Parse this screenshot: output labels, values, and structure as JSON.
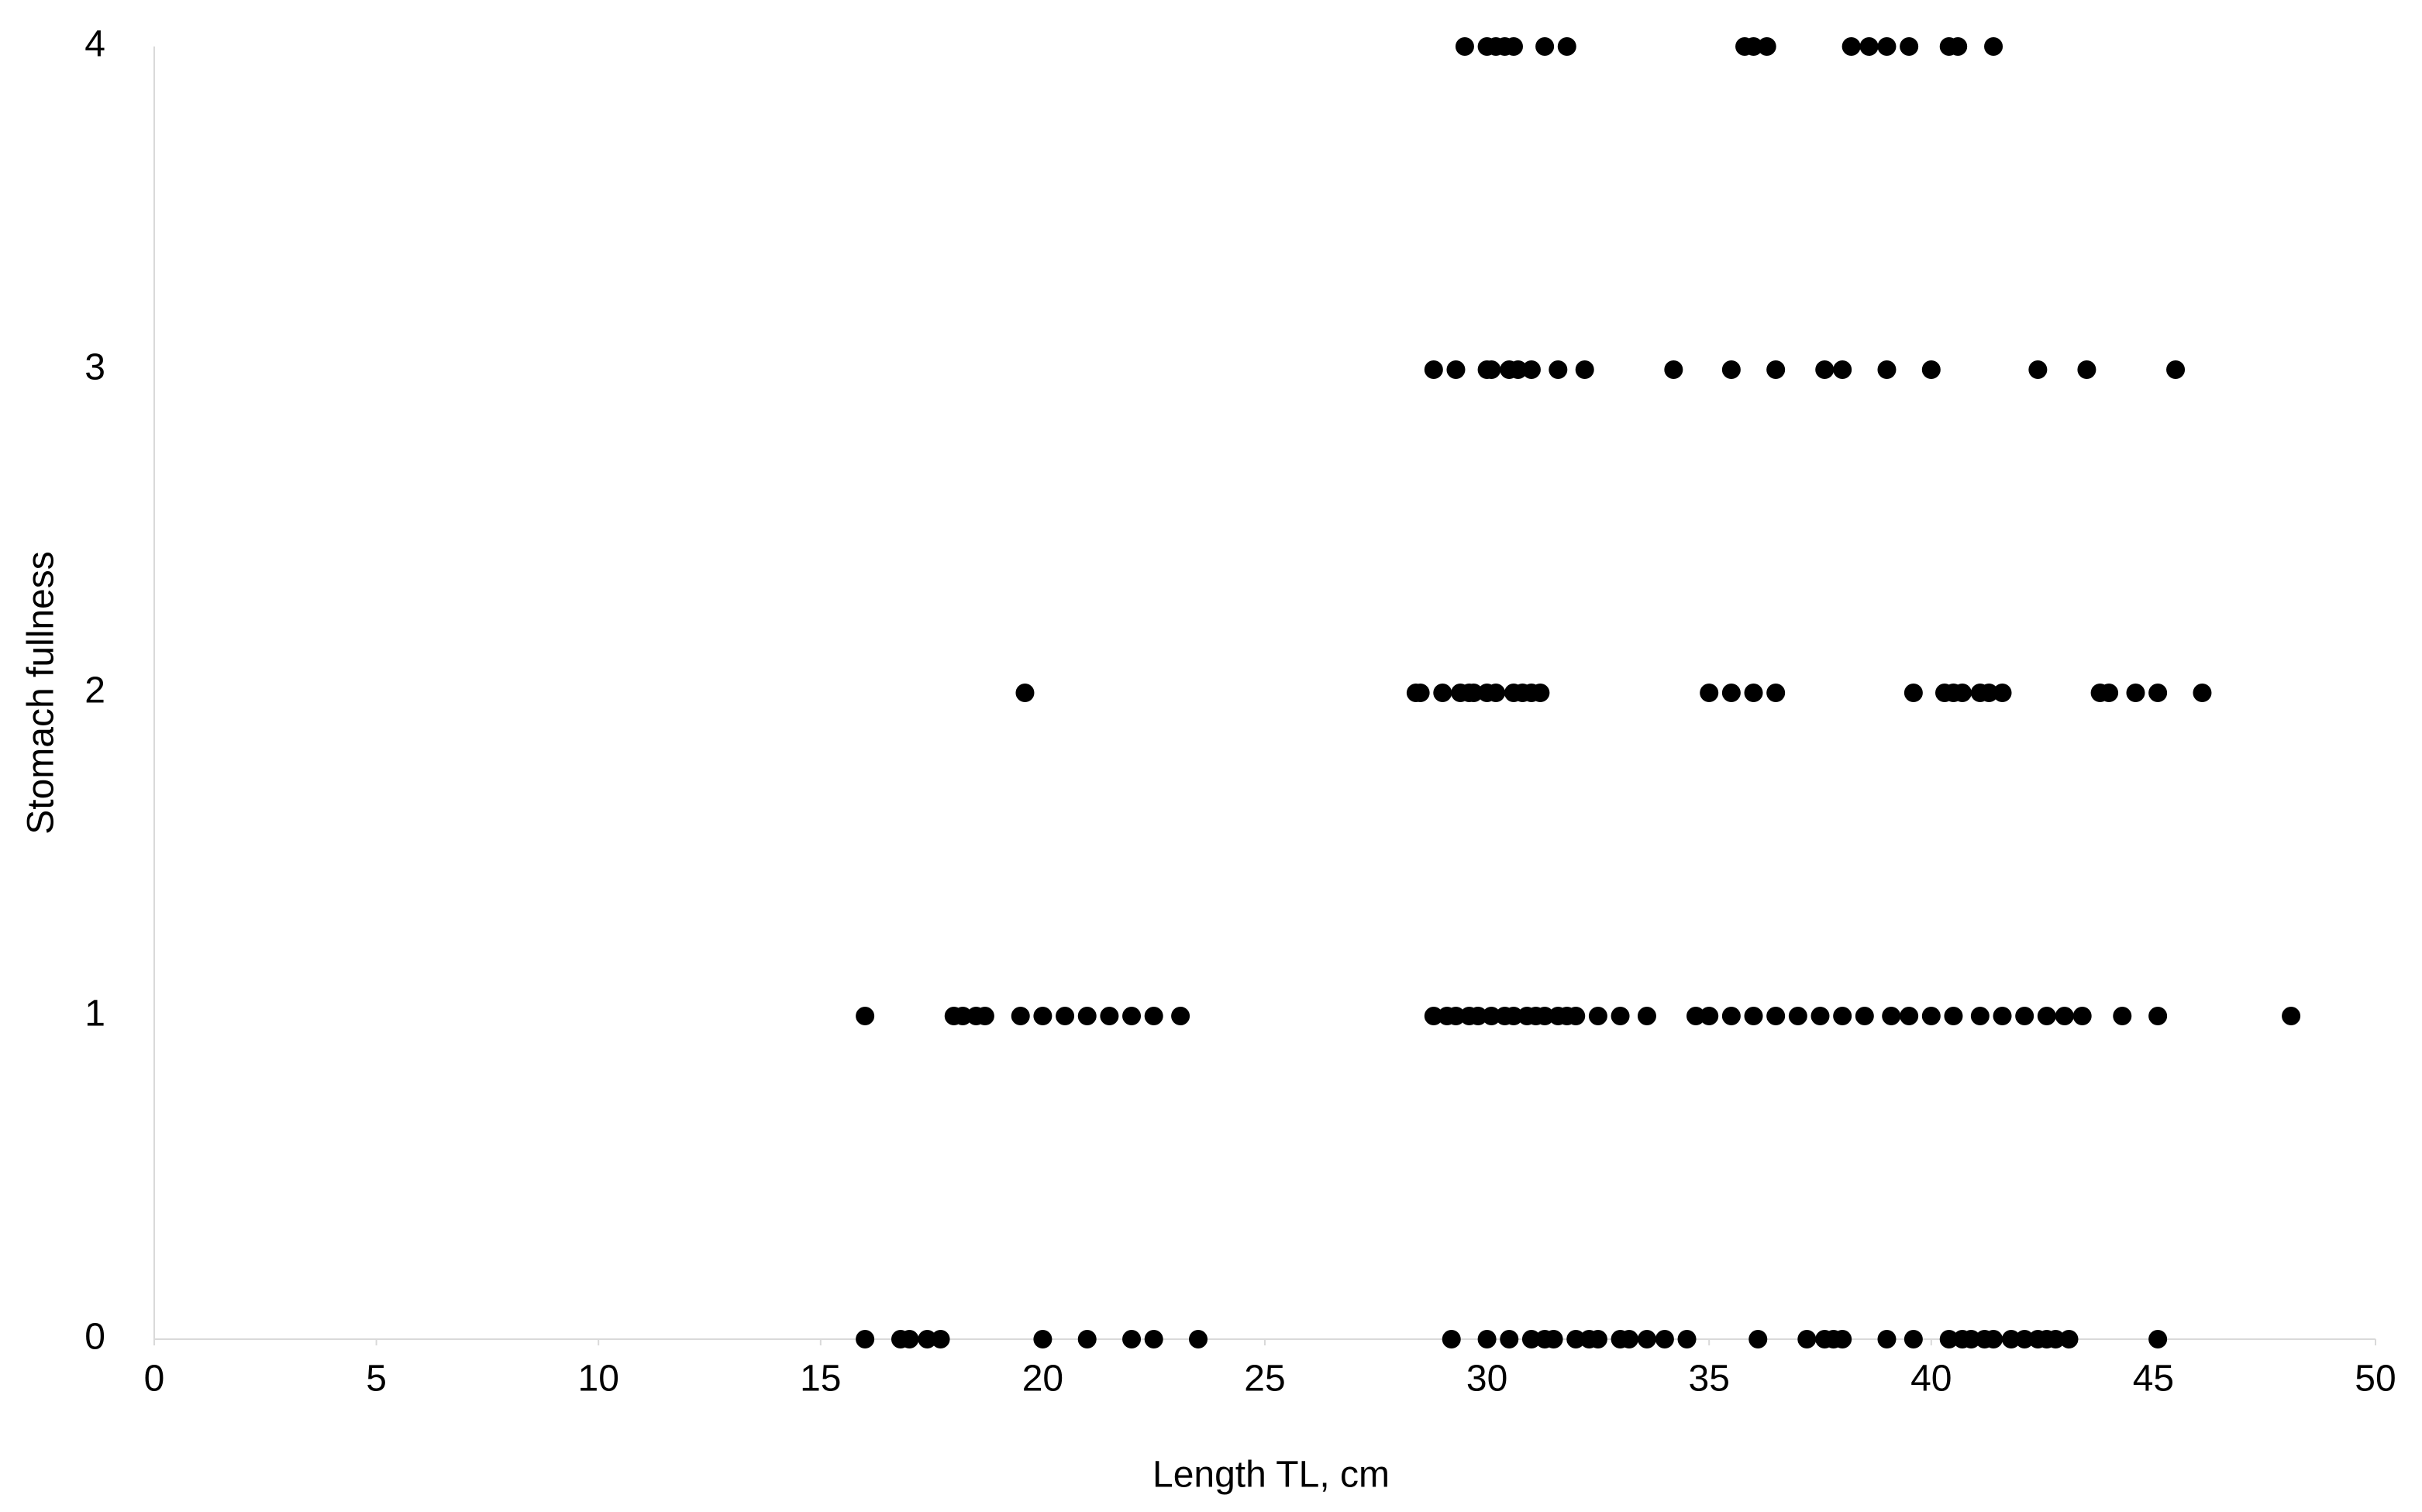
{
  "chart_data": {
    "type": "scatter",
    "xlabel": "Length TL, cm",
    "ylabel": "Stomach fullness",
    "color": "#000000",
    "xlim": [
      0,
      50
    ],
    "xticks": [
      0,
      5,
      10,
      15,
      20,
      25,
      30,
      35,
      40,
      45,
      50
    ],
    "ylim": [
      0,
      4
    ],
    "yticks": [
      0,
      1,
      2,
      3,
      4
    ],
    "grid": false,
    "x": [
      29.5,
      30.0,
      30.2,
      30.4,
      30.6,
      31.3,
      31.8,
      35.8,
      36.0,
      36.3,
      38.2,
      38.6,
      39.0,
      39.5,
      40.4,
      40.6,
      41.4,
      28.8,
      29.3,
      30.0,
      30.1,
      30.5,
      30.7,
      31.0,
      31.6,
      32.2,
      34.2,
      35.5,
      36.5,
      37.6,
      38.0,
      39.0,
      40.0,
      42.4,
      43.5,
      45.5,
      19.6,
      28.4,
      28.5,
      29.0,
      29.4,
      29.6,
      29.7,
      30.0,
      30.2,
      30.6,
      30.8,
      31.0,
      31.2,
      35.0,
      35.5,
      36.0,
      36.5,
      39.6,
      40.3,
      40.5,
      40.7,
      41.1,
      41.3,
      41.6,
      43.8,
      44.0,
      44.6,
      45.1,
      46.1,
      16.0,
      18.0,
      18.2,
      18.5,
      18.7,
      19.5,
      20.0,
      20.5,
      21.0,
      21.5,
      22.0,
      22.5,
      23.1,
      28.8,
      29.1,
      29.3,
      29.6,
      29.8,
      30.1,
      30.4,
      30.6,
      30.9,
      31.1,
      31.3,
      31.6,
      31.8,
      32.0,
      32.5,
      33.0,
      33.6,
      34.7,
      35.0,
      35.5,
      36.0,
      36.5,
      37.0,
      37.5,
      38.0,
      38.5,
      39.1,
      39.5,
      40.0,
      40.5,
      41.1,
      41.6,
      42.1,
      42.6,
      43.0,
      43.4,
      44.3,
      45.1,
      48.1,
      16.0,
      16.8,
      17.0,
      17.4,
      17.7,
      20.0,
      21.0,
      22.0,
      22.5,
      23.5,
      29.2,
      30.0,
      30.5,
      31.0,
      31.3,
      31.5,
      32.0,
      32.3,
      32.5,
      33.0,
      33.2,
      33.6,
      34.0,
      34.5,
      36.1,
      37.2,
      37.6,
      37.8,
      38.0,
      39.0,
      39.6,
      40.4,
      40.7,
      40.9,
      41.2,
      41.4,
      41.8,
      42.1,
      42.4,
      42.6,
      42.8,
      43.1,
      45.1
    ],
    "y": [
      4,
      4,
      4,
      4,
      4,
      4,
      4,
      4,
      4,
      4,
      4,
      4,
      4,
      4,
      4,
      4,
      4,
      3,
      3,
      3,
      3,
      3,
      3,
      3,
      3,
      3,
      3,
      3,
      3,
      3,
      3,
      3,
      3,
      3,
      3,
      3,
      2,
      2,
      2,
      2,
      2,
      2,
      2,
      2,
      2,
      2,
      2,
      2,
      2,
      2,
      2,
      2,
      2,
      2,
      2,
      2,
      2,
      2,
      2,
      2,
      2,
      2,
      2,
      2,
      2,
      1,
      1,
      1,
      1,
      1,
      1,
      1,
      1,
      1,
      1,
      1,
      1,
      1,
      1,
      1,
      1,
      1,
      1,
      1,
      1,
      1,
      1,
      1,
      1,
      1,
      1,
      1,
      1,
      1,
      1,
      1,
      1,
      1,
      1,
      1,
      1,
      1,
      1,
      1,
      1,
      1,
      1,
      1,
      1,
      1,
      1,
      1,
      1,
      1,
      1,
      1,
      1,
      0,
      0,
      0,
      0,
      0,
      0,
      0,
      0,
      0,
      0,
      0,
      0,
      0,
      0,
      0,
      0,
      0,
      0,
      0,
      0,
      0,
      0,
      0,
      0,
      0,
      0,
      0,
      0,
      0,
      0,
      0,
      0,
      0,
      0,
      0,
      0,
      0,
      0,
      0,
      0,
      0,
      0,
      0
    ]
  }
}
